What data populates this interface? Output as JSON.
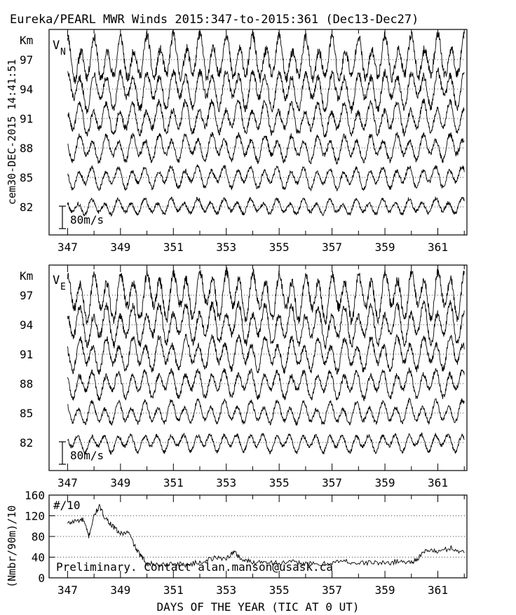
{
  "figure": {
    "title": "Eureka/PEARL MWR Winds 2015:347-to-2015:361 (Dec13-Dec27)",
    "side_label": "cem30-DEC-2015 14:41:51",
    "xlabel": "DAYS OF THE YEAR (TIC AT 0 UT)",
    "contact": "Preliminary. Contact alan.manson@usask.ca"
  },
  "chart_data": [
    {
      "type": "line",
      "panel": "VN",
      "label_main": "V",
      "label_sub": "N",
      "unit_label": "Km",
      "scale_bar_label": "80m/s",
      "xlim": [
        346.3,
        362.1
      ],
      "x_ticks": [
        347,
        349,
        351,
        353,
        355,
        357,
        359,
        361
      ],
      "x_minor_ticks": [
        348,
        350,
        352,
        354,
        356,
        358,
        360,
        362
      ],
      "y_ticks": [
        "97",
        "94",
        "91",
        "88",
        "85",
        "82"
      ],
      "series": [
        {
          "name": "97",
          "amplitude_ms": 60,
          "noise": 18,
          "drift": 5
        },
        {
          "name": "94",
          "amplitude_ms": 50,
          "noise": 14,
          "drift": 4
        },
        {
          "name": "91",
          "amplitude_ms": 42,
          "noise": 12,
          "drift": 4
        },
        {
          "name": "88",
          "amplitude_ms": 35,
          "noise": 10,
          "drift": 3
        },
        {
          "name": "85",
          "amplitude_ms": 28,
          "noise": 8,
          "drift": 3
        },
        {
          "name": "82",
          "amplitude_ms": 20,
          "noise": 7,
          "drift": 2
        }
      ],
      "grid": "dotted at altitude baselines"
    },
    {
      "type": "line",
      "panel": "VE",
      "label_main": "V",
      "label_sub": "E",
      "unit_label": "Km",
      "scale_bar_label": "80m/s",
      "xlim": [
        346.3,
        362.1
      ],
      "x_ticks": [
        347,
        349,
        351,
        353,
        355,
        357,
        359,
        361
      ],
      "x_minor_ticks": [
        348,
        350,
        352,
        354,
        356,
        358,
        360,
        362
      ],
      "y_ticks": [
        "97",
        "94",
        "91",
        "88",
        "85",
        "82"
      ],
      "series": [
        {
          "name": "97",
          "amplitude_ms": 62,
          "noise": 18,
          "drift": 6
        },
        {
          "name": "94",
          "amplitude_ms": 52,
          "noise": 14,
          "drift": 5
        },
        {
          "name": "91",
          "amplitude_ms": 44,
          "noise": 12,
          "drift": 4
        },
        {
          "name": "88",
          "amplitude_ms": 36,
          "noise": 10,
          "drift": 3
        },
        {
          "name": "85",
          "amplitude_ms": 30,
          "noise": 8,
          "drift": 3
        },
        {
          "name": "82",
          "amplitude_ms": 24,
          "noise": 7,
          "drift": 2
        }
      ],
      "grid": "dotted at altitude baselines"
    },
    {
      "type": "line",
      "panel": "count",
      "label": "#/10",
      "ylabel": "(Nmbr/90m)/10",
      "xlim": [
        346.3,
        362.1
      ],
      "ylim": [
        0,
        160
      ],
      "y_ticks": [
        0,
        40,
        80,
        120,
        160
      ],
      "x_ticks": [
        347,
        349,
        351,
        353,
        355,
        357,
        359,
        361
      ],
      "x_minor_ticks": [
        348,
        350,
        352,
        354,
        356,
        358,
        360,
        362
      ],
      "series": [
        {
          "name": "",
          "x": [
            347.0,
            347.3,
            347.6,
            347.8,
            348.0,
            348.2,
            348.4,
            348.7,
            349.0,
            349.3,
            349.6,
            349.8,
            350.0,
            350.5,
            351.0,
            351.5,
            352.0,
            352.5,
            353.0,
            353.3,
            353.6,
            354.0,
            354.5,
            355.0,
            355.5,
            356.0,
            356.5,
            357.0,
            357.5,
            358.0,
            358.5,
            359.0,
            359.5,
            360.0,
            360.3,
            360.6,
            361.0,
            361.5,
            362.0
          ],
          "y": [
            105,
            110,
            112,
            80,
            120,
            138,
            118,
            100,
            85,
            88,
            55,
            40,
            28,
            25,
            28,
            25,
            30,
            38,
            38,
            50,
            35,
            30,
            32,
            28,
            30,
            28,
            25,
            30,
            32,
            28,
            30,
            28,
            32,
            30,
            40,
            55,
            50,
            58,
            48
          ]
        }
      ],
      "grid": "dotted at y ticks"
    }
  ]
}
